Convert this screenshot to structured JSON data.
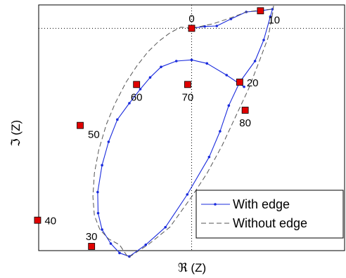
{
  "chart_data": {
    "type": "line",
    "xlabel": "ℜ (Z)",
    "ylabel": "ℑ (Z)",
    "xlim": [
      -0.7,
      0.7
    ],
    "ylim": [
      -0.95,
      0.1
    ],
    "grid": false,
    "reference_lines": {
      "x": 0,
      "y": 0
    },
    "legend_position": "bottom-right",
    "colors": {
      "with_edge": "#1a2bdd",
      "without_edge": "#555555",
      "marker": "#e00000"
    },
    "series": [
      {
        "name": "With edge",
        "style": "solid-dots",
        "points": [
          [
            0.0,
            0.0
          ],
          [
            0.06,
            0.008
          ],
          [
            0.115,
            0.01
          ],
          [
            0.18,
            0.04
          ],
          [
            0.25,
            0.07
          ],
          [
            0.315,
            0.075
          ],
          [
            0.37,
            0.082
          ],
          [
            0.36,
            0.05
          ],
          [
            0.33,
            -0.05
          ],
          [
            0.29,
            -0.14
          ],
          [
            0.22,
            -0.23
          ],
          [
            0.17,
            -0.33
          ],
          [
            0.13,
            -0.44
          ],
          [
            0.08,
            -0.55
          ],
          [
            -0.02,
            -0.71
          ],
          [
            -0.12,
            -0.85
          ],
          [
            -0.21,
            -0.925
          ],
          [
            -0.285,
            -0.975
          ],
          [
            -0.33,
            -0.96
          ],
          [
            -0.37,
            -0.92
          ],
          [
            -0.41,
            -0.86
          ],
          [
            -0.428,
            -0.79
          ],
          [
            -0.43,
            -0.7
          ],
          [
            -0.41,
            -0.585
          ],
          [
            -0.38,
            -0.485
          ],
          [
            -0.34,
            -0.39
          ],
          [
            -0.285,
            -0.32
          ],
          [
            -0.235,
            -0.26
          ],
          [
            -0.19,
            -0.21
          ],
          [
            -0.14,
            -0.165
          ],
          [
            -0.07,
            -0.14
          ],
          [
            0.0,
            -0.135
          ],
          [
            0.07,
            -0.15
          ],
          [
            0.16,
            -0.2
          ],
          [
            0.24,
            -0.25
          ]
        ]
      },
      {
        "name": "Without edge",
        "style": "dashed",
        "points": [
          [
            0.0,
            0.0
          ],
          [
            -0.05,
            0.005
          ],
          [
            -0.1,
            -0.02
          ],
          [
            -0.15,
            -0.055
          ],
          [
            -0.2,
            -0.1
          ],
          [
            -0.25,
            -0.16
          ],
          [
            -0.3,
            -0.23
          ],
          [
            -0.35,
            -0.32
          ],
          [
            -0.39,
            -0.41
          ],
          [
            -0.425,
            -0.52
          ],
          [
            -0.445,
            -0.62
          ],
          [
            -0.452,
            -0.72
          ],
          [
            -0.445,
            -0.8
          ],
          [
            -0.42,
            -0.86
          ],
          [
            -0.38,
            -0.9
          ],
          [
            -0.33,
            -0.925
          ],
          [
            -0.29,
            -0.98
          ],
          [
            -0.2,
            -0.925
          ],
          [
            -0.1,
            -0.85
          ],
          [
            0.0,
            -0.72
          ],
          [
            0.07,
            -0.62
          ],
          [
            0.14,
            -0.5
          ],
          [
            0.2,
            -0.38
          ],
          [
            0.26,
            -0.26
          ],
          [
            0.31,
            -0.14
          ],
          [
            0.35,
            -0.04
          ],
          [
            0.37,
            0.06
          ],
          [
            0.375,
            0.095
          ],
          [
            0.37,
            0.082
          ],
          [
            0.32,
            0.078
          ],
          [
            0.25,
            0.07
          ],
          [
            0.18,
            0.045
          ],
          [
            0.1,
            0.02
          ],
          [
            0.0,
            0.0
          ]
        ]
      }
    ],
    "markers": [
      {
        "label": "0",
        "x": 0.0,
        "y": 0.0,
        "anchor": "above"
      },
      {
        "label": "10",
        "x": 0.315,
        "y": 0.075,
        "anchor": "right-below"
      },
      {
        "label": "20",
        "x": 0.22,
        "y": -0.23,
        "anchor": "right"
      },
      {
        "label": "30",
        "x": -0.458,
        "y": -0.932,
        "anchor": "above"
      },
      {
        "label": "40",
        "x": -0.705,
        "y": -0.82,
        "anchor": "right"
      },
      {
        "label": "50",
        "x": -0.51,
        "y": -0.415,
        "anchor": "right-below"
      },
      {
        "label": "60",
        "x": -0.252,
        "y": -0.24,
        "anchor": "below"
      },
      {
        "label": "70",
        "x": -0.018,
        "y": -0.24,
        "anchor": "below"
      },
      {
        "label": "80",
        "x": 0.245,
        "y": -0.35,
        "anchor": "below"
      }
    ]
  }
}
